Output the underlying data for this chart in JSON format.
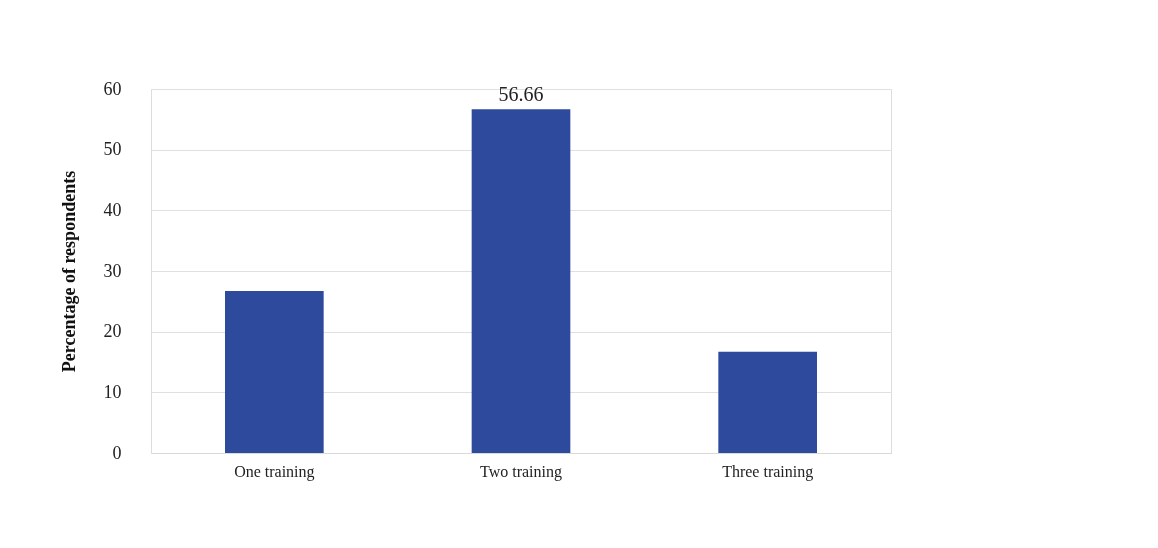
{
  "chart_data": {
    "type": "bar",
    "ylabel": "Percentage of respondents",
    "categories": [
      "One training",
      "Two training",
      "Three training"
    ],
    "values": [
      26.7,
      56.66,
      16.7
    ],
    "value_labels": [
      null,
      "56.66",
      null
    ],
    "color": "#2d4a9c",
    "ylim": [
      0,
      60
    ],
    "yticks": [
      0,
      10,
      20,
      30,
      40,
      50,
      60
    ],
    "grid": "y"
  }
}
